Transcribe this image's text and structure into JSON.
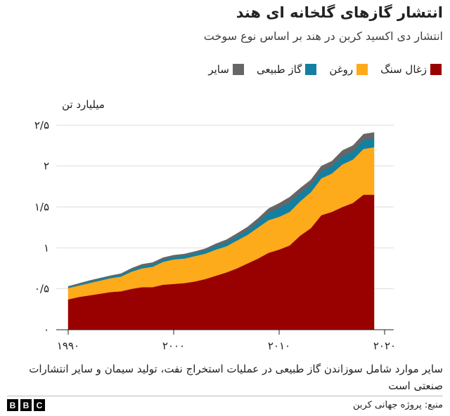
{
  "chart_data": {
    "type": "area",
    "stacked": true,
    "title": "انتشار گازهای گلخانه ای هند",
    "subtitle": "انتشار دی اکسید کربن در هند بر اساس نوع سوخت",
    "ylabel": "میلیارد تن",
    "xlabel": "",
    "xlim": [
      1990,
      2019
    ],
    "ylim": [
      0,
      2.7
    ],
    "x": [
      1990,
      1991,
      1992,
      1993,
      1994,
      1995,
      1996,
      1997,
      1998,
      1999,
      2000,
      2001,
      2002,
      2003,
      2004,
      2005,
      2006,
      2007,
      2008,
      2009,
      2010,
      2011,
      2012,
      2013,
      2014,
      2015,
      2016,
      2017,
      2018,
      2019
    ],
    "series": [
      {
        "name": "زغال سنگ",
        "color": "#990000",
        "values": [
          0.37,
          0.4,
          0.42,
          0.44,
          0.46,
          0.47,
          0.5,
          0.52,
          0.52,
          0.55,
          0.56,
          0.57,
          0.59,
          0.62,
          0.66,
          0.7,
          0.75,
          0.81,
          0.87,
          0.94,
          0.98,
          1.03,
          1.15,
          1.24,
          1.4,
          1.44,
          1.5,
          1.55,
          1.65,
          1.65
        ]
      },
      {
        "name": "روغن",
        "color": "#fdaa1b",
        "values": [
          0.14,
          0.14,
          0.15,
          0.16,
          0.17,
          0.18,
          0.21,
          0.23,
          0.25,
          0.28,
          0.3,
          0.3,
          0.31,
          0.31,
          0.32,
          0.32,
          0.34,
          0.35,
          0.38,
          0.4,
          0.4,
          0.41,
          0.42,
          0.44,
          0.45,
          0.47,
          0.52,
          0.53,
          0.56,
          0.58
        ]
      },
      {
        "name": "گاز طبیعی",
        "color": "#1380a1",
        "values": [
          0.01,
          0.015,
          0.02,
          0.02,
          0.02,
          0.025,
          0.025,
          0.03,
          0.03,
          0.03,
          0.03,
          0.035,
          0.035,
          0.04,
          0.045,
          0.05,
          0.05,
          0.055,
          0.065,
          0.09,
          0.11,
          0.12,
          0.1,
          0.09,
          0.09,
          0.09,
          0.1,
          0.1,
          0.11,
          0.11
        ]
      },
      {
        "name": "سایر",
        "color": "#666666",
        "values": [
          0.01,
          0.01,
          0.01,
          0.01,
          0.01,
          0.01,
          0.015,
          0.02,
          0.02,
          0.02,
          0.02,
          0.02,
          0.02,
          0.02,
          0.025,
          0.03,
          0.035,
          0.04,
          0.045,
          0.05,
          0.055,
          0.06,
          0.06,
          0.06,
          0.06,
          0.06,
          0.07,
          0.07,
          0.07,
          0.07
        ]
      }
    ],
    "y_ticks": [
      {
        "value": 0,
        "label": "۰"
      },
      {
        "value": 0.5,
        "label": "۰/۵"
      },
      {
        "value": 1,
        "label": "۱"
      },
      {
        "value": 1.5,
        "label": "۱/۵"
      },
      {
        "value": 2,
        "label": "۲"
      },
      {
        "value": 2.5,
        "label": "۲/۵"
      }
    ],
    "x_ticks": [
      {
        "value": 1990,
        "label": "۱۹۹۰"
      },
      {
        "value": 2000,
        "label": "۲۰۰۰"
      },
      {
        "value": 2010,
        "label": "۲۰۱۰"
      },
      {
        "value": 2020,
        "label": "۲۰۲۰"
      }
    ],
    "legend_position": "top-right",
    "legend_order": [
      "سایر",
      "گاز طبیعی",
      "روغن",
      "زغال سنگ"
    ],
    "grid": true
  },
  "footnote": "سایر موارد شامل سوزاندن گاز طبیعی در عملیات استخراج نفت، تولید سیمان و سایر انتشارات صنعتی است",
  "footer": {
    "source": "منبع: پروژه جهانی کربن",
    "logo_letters": [
      "B",
      "B",
      "C"
    ]
  }
}
